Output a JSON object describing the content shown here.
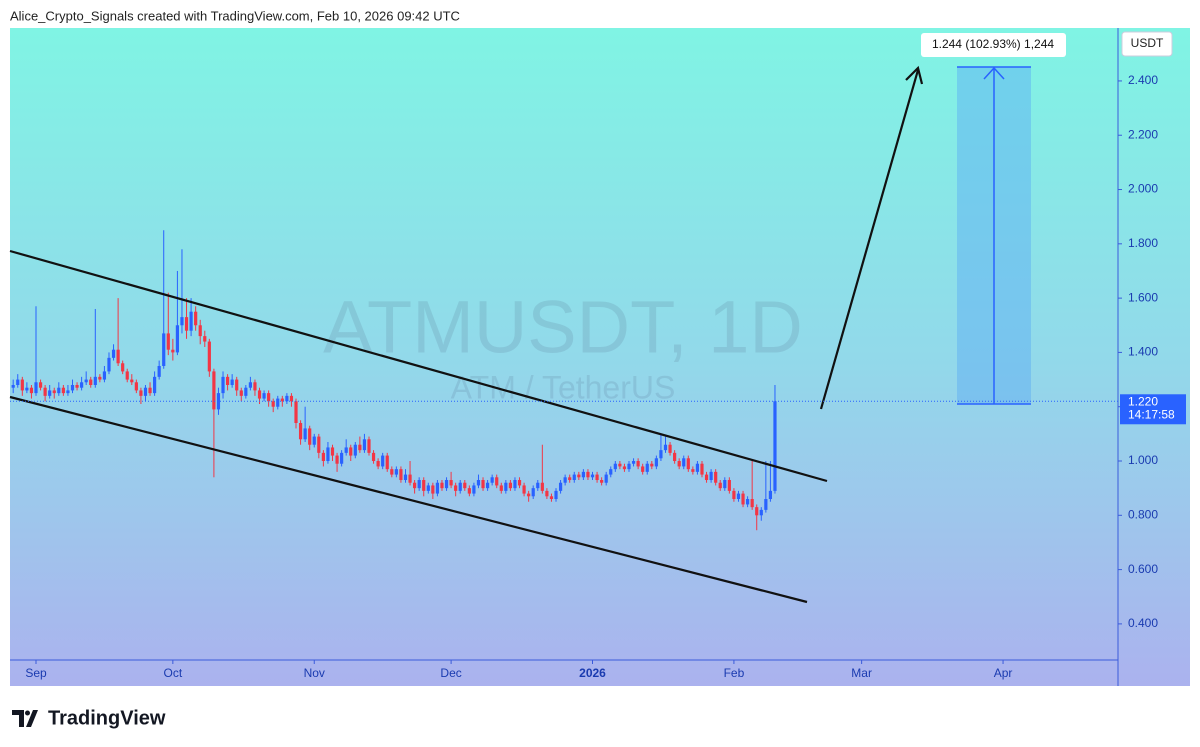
{
  "header": {
    "text": "Alice_Crypto_Signals created with TradingView.com, Feb 10, 2026 09:42 UTC"
  },
  "footer": {
    "logo": "TradingView"
  },
  "chart_data": {
    "type": "candlestick",
    "watermark": "ATMUSDT, 1D",
    "watermark_subtitle": "ATM / TetherUS",
    "y_axis_unit": "USDT",
    "up_color": "#2962ff",
    "down_color": "#f23645",
    "ylim": [
      0.267,
      2.595
    ],
    "yticks": [
      {
        "value": 0.4,
        "label": "0.400"
      },
      {
        "value": 0.6,
        "label": "0.600"
      },
      {
        "value": 0.8,
        "label": "0.800"
      },
      {
        "value": 1.0,
        "label": "1.000"
      },
      {
        "value": 1.2,
        "label": "1.200"
      },
      {
        "value": 1.4,
        "label": "1.400"
      },
      {
        "value": 1.6,
        "label": "1.600"
      },
      {
        "value": 1.8,
        "label": "1.800"
      },
      {
        "value": 2.0,
        "label": "2.000"
      },
      {
        "value": 2.2,
        "label": "2.200"
      },
      {
        "value": 2.4,
        "label": "2.400"
      }
    ],
    "xlim": [
      -0.7,
      242.2
    ],
    "xticks": [
      {
        "value": 5,
        "label": "Sep"
      },
      {
        "value": 35,
        "label": "Oct"
      },
      {
        "value": 66,
        "label": "Nov"
      },
      {
        "value": 96,
        "label": "Dec"
      },
      {
        "value": 127,
        "label": "2026",
        "bold": true
      },
      {
        "value": 158,
        "label": "Feb"
      },
      {
        "value": 186,
        "label": "Mar"
      },
      {
        "value": 217,
        "label": "Apr"
      }
    ],
    "last_price": {
      "value": 1.22,
      "label": "1.220"
    },
    "countdown": "14:17:58",
    "measure_label": "1.244 (102.93%) 1,244",
    "ohlc": [
      [
        1.27,
        1.3,
        1.25,
        1.28
      ],
      [
        1.28,
        1.32,
        1.27,
        1.3
      ],
      [
        1.3,
        1.31,
        1.24,
        1.26
      ],
      [
        1.26,
        1.29,
        1.25,
        1.27
      ],
      [
        1.27,
        1.28,
        1.23,
        1.25
      ],
      [
        1.25,
        1.57,
        1.24,
        1.29
      ],
      [
        1.29,
        1.3,
        1.26,
        1.27
      ],
      [
        1.27,
        1.28,
        1.22,
        1.24
      ],
      [
        1.24,
        1.28,
        1.23,
        1.26
      ],
      [
        1.26,
        1.27,
        1.23,
        1.25
      ],
      [
        1.25,
        1.29,
        1.24,
        1.27
      ],
      [
        1.27,
        1.28,
        1.24,
        1.25
      ],
      [
        1.25,
        1.28,
        1.24,
        1.26
      ],
      [
        1.26,
        1.3,
        1.25,
        1.28
      ],
      [
        1.28,
        1.29,
        1.26,
        1.27
      ],
      [
        1.27,
        1.31,
        1.26,
        1.29
      ],
      [
        1.29,
        1.33,
        1.28,
        1.3
      ],
      [
        1.3,
        1.31,
        1.27,
        1.28
      ],
      [
        1.28,
        1.56,
        1.27,
        1.31
      ],
      [
        1.31,
        1.32,
        1.29,
        1.3
      ],
      [
        1.3,
        1.35,
        1.29,
        1.33
      ],
      [
        1.33,
        1.4,
        1.32,
        1.38
      ],
      [
        1.38,
        1.43,
        1.37,
        1.41
      ],
      [
        1.41,
        1.6,
        1.35,
        1.36
      ],
      [
        1.36,
        1.37,
        1.32,
        1.33
      ],
      [
        1.33,
        1.34,
        1.29,
        1.3
      ],
      [
        1.3,
        1.32,
        1.28,
        1.29
      ],
      [
        1.29,
        1.3,
        1.25,
        1.26
      ],
      [
        1.26,
        1.27,
        1.21,
        1.24
      ],
      [
        1.24,
        1.28,
        1.22,
        1.27
      ],
      [
        1.27,
        1.29,
        1.24,
        1.25
      ],
      [
        1.25,
        1.33,
        1.24,
        1.31
      ],
      [
        1.31,
        1.37,
        1.3,
        1.35
      ],
      [
        1.35,
        1.85,
        1.34,
        1.47
      ],
      [
        1.47,
        1.62,
        1.39,
        1.41
      ],
      [
        1.41,
        1.45,
        1.37,
        1.4
      ],
      [
        1.4,
        1.7,
        1.39,
        1.5
      ],
      [
        1.5,
        1.78,
        1.47,
        1.53
      ],
      [
        1.53,
        1.6,
        1.45,
        1.48
      ],
      [
        1.48,
        1.6,
        1.46,
        1.55
      ],
      [
        1.55,
        1.57,
        1.48,
        1.5
      ],
      [
        1.5,
        1.52,
        1.43,
        1.46
      ],
      [
        1.46,
        1.48,
        1.42,
        1.44
      ],
      [
        1.44,
        1.45,
        1.31,
        1.33
      ],
      [
        1.33,
        1.34,
        0.94,
        1.19
      ],
      [
        1.19,
        1.27,
        1.17,
        1.25
      ],
      [
        1.25,
        1.33,
        1.23,
        1.31
      ],
      [
        1.31,
        1.32,
        1.26,
        1.28
      ],
      [
        1.28,
        1.32,
        1.27,
        1.3
      ],
      [
        1.3,
        1.31,
        1.24,
        1.26
      ],
      [
        1.26,
        1.27,
        1.22,
        1.24
      ],
      [
        1.24,
        1.28,
        1.23,
        1.27
      ],
      [
        1.27,
        1.31,
        1.26,
        1.29
      ],
      [
        1.29,
        1.3,
        1.24,
        1.26
      ],
      [
        1.26,
        1.27,
        1.21,
        1.23
      ],
      [
        1.23,
        1.26,
        1.22,
        1.25
      ],
      [
        1.25,
        1.26,
        1.2,
        1.22
      ],
      [
        1.22,
        1.23,
        1.18,
        1.2
      ],
      [
        1.2,
        1.24,
        1.19,
        1.23
      ],
      [
        1.23,
        1.24,
        1.2,
        1.22
      ],
      [
        1.22,
        1.25,
        1.21,
        1.24
      ],
      [
        1.24,
        1.25,
        1.2,
        1.22
      ],
      [
        1.22,
        1.23,
        1.12,
        1.14
      ],
      [
        1.14,
        1.15,
        1.06,
        1.08
      ],
      [
        1.08,
        1.2,
        1.07,
        1.12
      ],
      [
        1.12,
        1.13,
        1.04,
        1.06
      ],
      [
        1.06,
        1.1,
        1.05,
        1.09
      ],
      [
        1.09,
        1.1,
        1.01,
        1.03
      ],
      [
        1.03,
        1.04,
        0.98,
        1.0
      ],
      [
        1.0,
        1.07,
        0.99,
        1.05
      ],
      [
        1.05,
        1.06,
        1.0,
        1.02
      ],
      [
        1.02,
        1.03,
        0.96,
        0.99
      ],
      [
        0.99,
        1.04,
        0.98,
        1.03
      ],
      [
        1.03,
        1.08,
        1.02,
        1.05
      ],
      [
        1.05,
        1.06,
        1.0,
        1.02
      ],
      [
        1.02,
        1.07,
        1.01,
        1.06
      ],
      [
        1.06,
        1.09,
        1.03,
        1.04
      ],
      [
        1.04,
        1.1,
        1.03,
        1.08
      ],
      [
        1.08,
        1.09,
        1.02,
        1.03
      ],
      [
        1.03,
        1.04,
        0.99,
        1.0
      ],
      [
        1.0,
        1.01,
        0.97,
        0.98
      ],
      [
        0.98,
        1.03,
        0.97,
        1.02
      ],
      [
        1.02,
        1.03,
        0.96,
        0.97
      ],
      [
        0.97,
        0.98,
        0.94,
        0.95
      ],
      [
        0.95,
        0.98,
        0.94,
        0.97
      ],
      [
        0.97,
        0.98,
        0.92,
        0.93
      ],
      [
        0.93,
        0.97,
        0.92,
        0.95
      ],
      [
        0.95,
        1.0,
        0.91,
        0.92
      ],
      [
        0.92,
        0.93,
        0.88,
        0.9
      ],
      [
        0.9,
        0.94,
        0.89,
        0.93
      ],
      [
        0.93,
        0.94,
        0.87,
        0.89
      ],
      [
        0.89,
        0.92,
        0.88,
        0.91
      ],
      [
        0.91,
        0.92,
        0.86,
        0.88
      ],
      [
        0.88,
        0.93,
        0.87,
        0.92
      ],
      [
        0.92,
        0.93,
        0.89,
        0.9
      ],
      [
        0.9,
        0.94,
        0.89,
        0.93
      ],
      [
        0.93,
        0.96,
        0.9,
        0.91
      ],
      [
        0.91,
        0.92,
        0.87,
        0.89
      ],
      [
        0.89,
        0.93,
        0.88,
        0.92
      ],
      [
        0.92,
        0.93,
        0.89,
        0.9
      ],
      [
        0.9,
        0.91,
        0.87,
        0.88
      ],
      [
        0.88,
        0.92,
        0.87,
        0.91
      ],
      [
        0.91,
        0.95,
        0.9,
        0.93
      ],
      [
        0.93,
        0.94,
        0.89,
        0.9
      ],
      [
        0.9,
        0.93,
        0.89,
        0.92
      ],
      [
        0.92,
        0.95,
        0.91,
        0.94
      ],
      [
        0.94,
        0.95,
        0.9,
        0.91
      ],
      [
        0.91,
        0.92,
        0.88,
        0.89
      ],
      [
        0.89,
        0.93,
        0.88,
        0.92
      ],
      [
        0.92,
        0.93,
        0.89,
        0.9
      ],
      [
        0.9,
        0.94,
        0.89,
        0.93
      ],
      [
        0.93,
        0.94,
        0.9,
        0.91
      ],
      [
        0.91,
        0.92,
        0.87,
        0.88
      ],
      [
        0.88,
        0.89,
        0.85,
        0.87
      ],
      [
        0.87,
        0.91,
        0.86,
        0.9
      ],
      [
        0.9,
        0.93,
        0.89,
        0.92
      ],
      [
        0.92,
        1.06,
        0.88,
        0.89
      ],
      [
        0.89,
        0.9,
        0.86,
        0.87
      ],
      [
        0.87,
        0.88,
        0.85,
        0.86
      ],
      [
        0.86,
        0.9,
        0.85,
        0.89
      ],
      [
        0.89,
        0.93,
        0.88,
        0.92
      ],
      [
        0.92,
        0.95,
        0.91,
        0.94
      ],
      [
        0.94,
        0.95,
        0.92,
        0.93
      ],
      [
        0.93,
        0.96,
        0.92,
        0.95
      ],
      [
        0.95,
        0.96,
        0.93,
        0.94
      ],
      [
        0.94,
        0.97,
        0.93,
        0.96
      ],
      [
        0.96,
        0.97,
        0.93,
        0.94
      ],
      [
        0.94,
        0.96,
        0.93,
        0.95
      ],
      [
        0.95,
        0.96,
        0.92,
        0.93
      ],
      [
        0.93,
        0.94,
        0.91,
        0.92
      ],
      [
        0.92,
        0.96,
        0.91,
        0.95
      ],
      [
        0.95,
        0.98,
        0.94,
        0.97
      ],
      [
        0.97,
        1.0,
        0.96,
        0.99
      ],
      [
        0.99,
        1.0,
        0.97,
        0.98
      ],
      [
        0.98,
        0.99,
        0.96,
        0.97
      ],
      [
        0.97,
        1.0,
        0.96,
        0.99
      ],
      [
        0.99,
        1.01,
        0.98,
        1.0
      ],
      [
        1.0,
        1.01,
        0.97,
        0.98
      ],
      [
        0.98,
        0.99,
        0.95,
        0.96
      ],
      [
        0.96,
        1.0,
        0.95,
        0.99
      ],
      [
        0.99,
        1.0,
        0.97,
        0.98
      ],
      [
        0.98,
        1.02,
        0.97,
        1.01
      ],
      [
        1.01,
        1.1,
        1.0,
        1.04
      ],
      [
        1.04,
        1.09,
        1.03,
        1.06
      ],
      [
        1.06,
        1.07,
        1.02,
        1.03
      ],
      [
        1.03,
        1.04,
        0.99,
        1.0
      ],
      [
        1.0,
        1.01,
        0.97,
        0.98
      ],
      [
        0.98,
        1.02,
        0.97,
        1.01
      ],
      [
        1.01,
        1.02,
        0.96,
        0.97
      ],
      [
        0.97,
        0.98,
        0.95,
        0.96
      ],
      [
        0.96,
        1.0,
        0.95,
        0.99
      ],
      [
        0.99,
        1.0,
        0.94,
        0.95
      ],
      [
        0.95,
        0.96,
        0.92,
        0.93
      ],
      [
        0.93,
        0.97,
        0.92,
        0.96
      ],
      [
        0.96,
        0.97,
        0.91,
        0.92
      ],
      [
        0.92,
        0.93,
        0.89,
        0.9
      ],
      [
        0.9,
        0.94,
        0.89,
        0.93
      ],
      [
        0.93,
        0.94,
        0.88,
        0.89
      ],
      [
        0.89,
        0.9,
        0.85,
        0.86
      ],
      [
        0.86,
        0.89,
        0.85,
        0.88
      ],
      [
        0.88,
        0.89,
        0.83,
        0.84
      ],
      [
        0.84,
        0.87,
        0.83,
        0.86
      ],
      [
        0.86,
        1.0,
        0.82,
        0.83
      ],
      [
        0.83,
        0.84,
        0.745,
        0.8
      ],
      [
        0.8,
        0.83,
        0.78,
        0.82
      ],
      [
        0.82,
        1.0,
        0.81,
        0.86
      ],
      [
        0.86,
        1.0,
        0.85,
        0.89
      ],
      [
        0.89,
        1.28,
        0.88,
        1.22
      ]
    ]
  }
}
